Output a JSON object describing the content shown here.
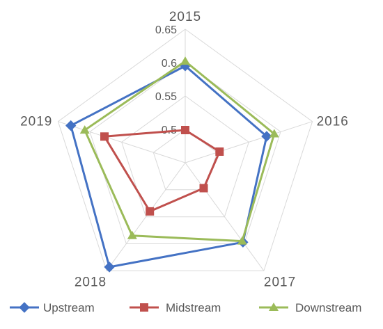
{
  "chart_data": {
    "type": "radar",
    "categories": [
      "2015",
      "2016",
      "2017",
      "2018",
      "2019"
    ],
    "radial_axis": {
      "min": 0.45,
      "max": 0.65,
      "ticks": [
        "0.5",
        "0.55",
        "0.6",
        "0.65"
      ]
    },
    "grid": true,
    "legend_position": "bottom",
    "series": [
      {
        "name": "Upstream",
        "values": [
          0.595,
          0.578,
          0.597,
          0.643,
          0.63
        ],
        "color": "#4472C4",
        "marker": "diamond"
      },
      {
        "name": "Midstream",
        "values": [
          0.499,
          0.504,
          0.497,
          0.54,
          0.577
        ],
        "color": "#C0504D",
        "marker": "square"
      },
      {
        "name": "Downstream",
        "values": [
          0.602,
          0.59,
          0.595,
          0.585,
          0.608
        ],
        "color": "#9BBB59",
        "marker": "triangle"
      }
    ]
  }
}
